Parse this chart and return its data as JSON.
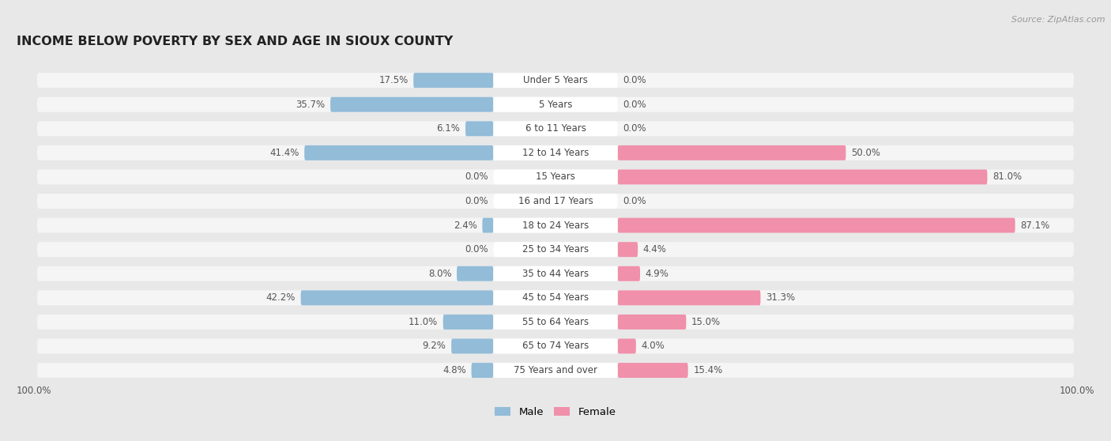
{
  "title": "INCOME BELOW POVERTY BY SEX AND AGE IN SIOUX COUNTY",
  "source": "Source: ZipAtlas.com",
  "categories": [
    "Under 5 Years",
    "5 Years",
    "6 to 11 Years",
    "12 to 14 Years",
    "15 Years",
    "16 and 17 Years",
    "18 to 24 Years",
    "25 to 34 Years",
    "35 to 44 Years",
    "45 to 54 Years",
    "55 to 64 Years",
    "65 to 74 Years",
    "75 Years and over"
  ],
  "male_values": [
    17.5,
    35.7,
    6.1,
    41.4,
    0.0,
    0.0,
    2.4,
    0.0,
    8.0,
    42.2,
    11.0,
    9.2,
    4.8
  ],
  "female_values": [
    0.0,
    0.0,
    0.0,
    50.0,
    81.0,
    0.0,
    87.1,
    4.4,
    4.9,
    31.3,
    15.0,
    4.0,
    15.4
  ],
  "male_color": "#92bcd8",
  "female_color": "#f090aa",
  "background_color": "#e8e8e8",
  "bar_bg_color": "#f5f5f5",
  "title_fontsize": 11.5,
  "label_fontsize": 8.5,
  "value_fontsize": 8.5,
  "source_fontsize": 8,
  "max_val": 100.0,
  "legend_male": "Male",
  "legend_female": "Female"
}
